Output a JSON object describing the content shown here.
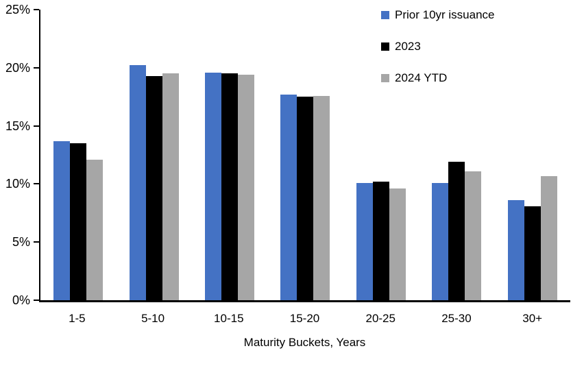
{
  "background": "#FFFFFF",
  "axis": {
    "line_color": "#000000",
    "text_color": "#000000"
  },
  "chart_data": {
    "type": "bar",
    "title": "",
    "xlabel": "Maturity Buckets, Years",
    "ylabel": "",
    "ylim": [
      0,
      25
    ],
    "yticks": [
      0,
      5,
      10,
      15,
      20,
      25
    ],
    "ytick_suffix": "%",
    "grid": false,
    "legend_position": "top-right-inside",
    "categories": [
      "1-5",
      "5-10",
      "10-15",
      "15-20",
      "20-25",
      "25-30",
      "30+"
    ],
    "series": [
      {
        "name": "Prior 10yr issuance",
        "color": "#4472C4",
        "values": [
          13.7,
          20.2,
          19.6,
          17.7,
          10.1,
          10.1,
          8.6
        ]
      },
      {
        "name": "2023",
        "color": "#000000",
        "values": [
          13.5,
          19.3,
          19.5,
          17.5,
          10.2,
          11.9,
          8.1
        ]
      },
      {
        "name": "2024 YTD",
        "color": "#A6A6A6",
        "values": [
          12.1,
          19.5,
          19.4,
          17.6,
          9.6,
          11.1,
          10.7
        ]
      }
    ]
  }
}
